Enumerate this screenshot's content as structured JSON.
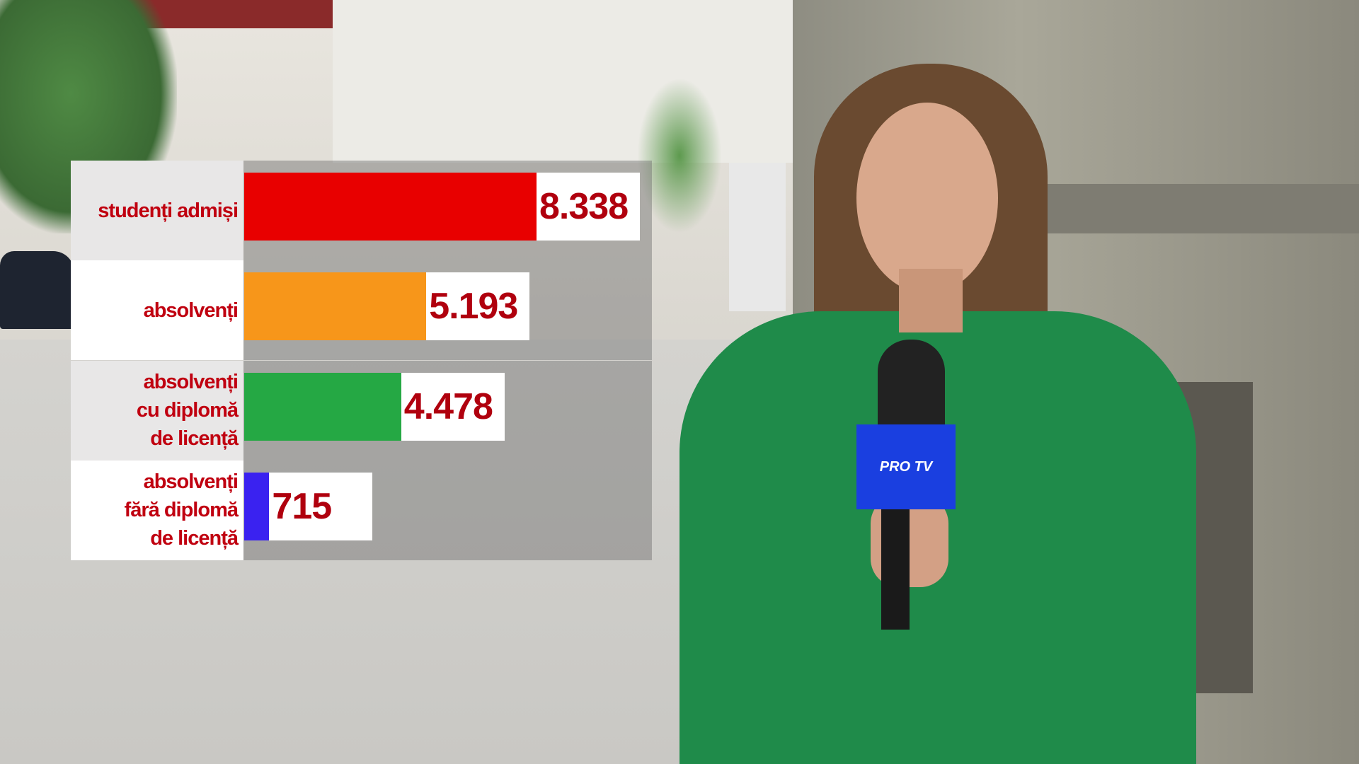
{
  "chart_data": {
    "type": "bar",
    "orientation": "horizontal",
    "categories": [
      "studenți admiși",
      "absolvenți",
      "absolvenți\ncu diplomă\nde licență",
      "absolvenți\nfără diplomă\nde licență"
    ],
    "values": [
      8338,
      5193,
      4478,
      715
    ],
    "value_labels": [
      "8.338",
      "5.193",
      "4.478",
      "715"
    ],
    "colors": [
      "#e80000",
      "#f7961a",
      "#25a844",
      "#3a22f0"
    ],
    "xlim": [
      0,
      8338
    ],
    "grid": false,
    "legend": "none"
  },
  "overlay": {
    "microphone_logo": "PRO TV"
  }
}
